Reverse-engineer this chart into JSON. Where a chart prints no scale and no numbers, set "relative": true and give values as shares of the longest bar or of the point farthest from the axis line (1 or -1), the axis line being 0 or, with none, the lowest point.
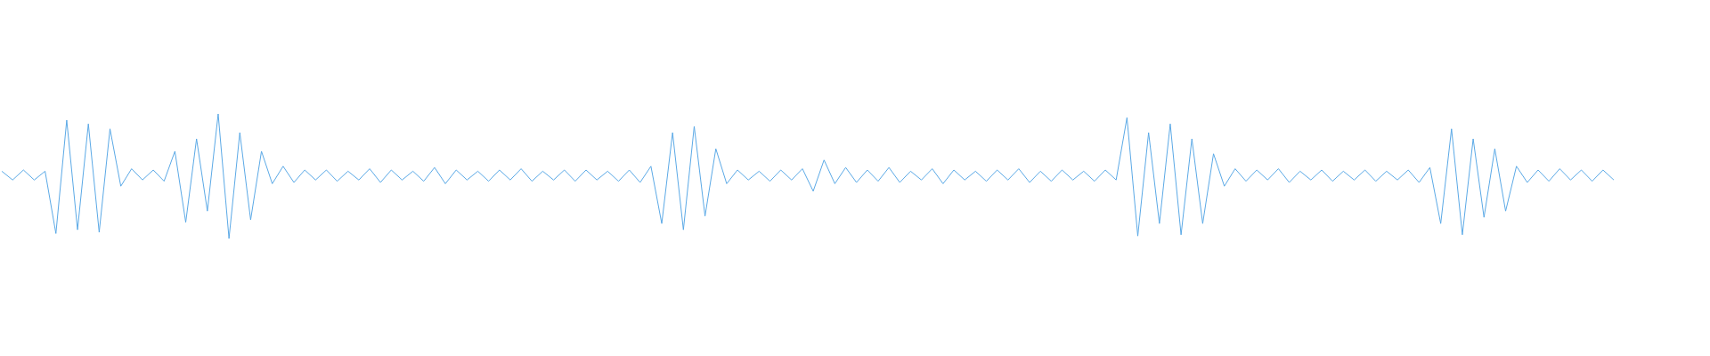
{
  "chart_data": {
    "type": "line",
    "relative": true,
    "color": "#5aa9e6",
    "marker": "none",
    "categories": [
      null,
      null,
      null,
      null,
      null,
      null,
      null,
      null,
      null,
      null,
      null,
      null,
      null,
      null,
      null,
      null,
      null,
      null,
      null,
      null,
      null,
      null,
      null,
      null,
      null,
      null,
      null,
      null,
      null,
      null,
      null,
      null,
      null,
      null,
      null,
      null,
      null,
      null,
      null,
      null,
      null,
      null,
      null,
      null,
      null,
      null,
      null,
      null,
      null,
      null,
      null,
      null,
      null,
      null,
      null,
      null,
      null,
      null,
      null,
      null,
      null,
      null,
      null,
      null,
      null,
      null,
      null,
      null,
      null,
      null,
      null,
      null,
      null,
      null,
      null,
      null,
      null,
      null,
      null,
      null,
      null,
      null,
      null,
      null,
      null,
      null,
      null,
      null,
      null,
      null,
      null,
      null,
      null,
      null,
      null,
      null,
      null,
      null,
      null,
      null,
      null,
      null,
      null,
      null,
      null,
      null,
      null,
      null,
      null,
      null,
      null,
      null,
      null,
      null,
      null,
      null,
      null,
      null,
      null,
      null,
      null,
      null,
      null,
      null,
      null,
      null,
      null,
      null,
      null,
      null,
      null,
      null,
      null,
      null,
      null,
      null,
      null,
      null,
      null,
      null,
      null,
      null,
      null,
      null,
      null,
      null,
      null,
      null,
      null,
      null
    ],
    "values": [
      0.54,
      0.47,
      0.55,
      0.47,
      0.54,
      0.04,
      0.95,
      0.07,
      0.92,
      0.05,
      0.88,
      0.42,
      0.56,
      0.47,
      0.55,
      0.46,
      0.7,
      0.13,
      0.8,
      0.22,
      1,
      0,
      0.85,
      0.15,
      0.7,
      0.44,
      0.58,
      0.45,
      0.55,
      0.47,
      0.55,
      0.46,
      0.54,
      0.47,
      0.56,
      0.45,
      0.55,
      0.47,
      0.54,
      0.46,
      0.57,
      0.44,
      0.55,
      0.47,
      0.54,
      0.46,
      0.55,
      0.47,
      0.56,
      0.46,
      0.54,
      0.47,
      0.55,
      0.46,
      0.55,
      0.47,
      0.54,
      0.46,
      0.55,
      0.45,
      0.58,
      0.12,
      0.85,
      0.07,
      0.9,
      0.18,
      0.72,
      0.44,
      0.55,
      0.47,
      0.54,
      0.46,
      0.55,
      0.47,
      0.56,
      0.38,
      0.63,
      0.44,
      0.57,
      0.45,
      0.55,
      0.46,
      0.57,
      0.45,
      0.54,
      0.47,
      0.56,
      0.44,
      0.55,
      0.47,
      0.54,
      0.46,
      0.55,
      0.47,
      0.56,
      0.45,
      0.54,
      0.46,
      0.55,
      0.47,
      0.54,
      0.46,
      0.55,
      0.47,
      0.97,
      0.02,
      0.85,
      0.12,
      0.92,
      0.03,
      0.8,
      0.12,
      0.68,
      0.42,
      0.56,
      0.46,
      0.55,
      0.47,
      0.56,
      0.45,
      0.54,
      0.47,
      0.55,
      0.46,
      0.54,
      0.47,
      0.55,
      0.46,
      0.54,
      0.47,
      0.55,
      0.45,
      0.57,
      0.12,
      0.88,
      0.03,
      0.8,
      0.17,
      0.72,
      0.22,
      0.58,
      0.45,
      0.55,
      0.46,
      0.56,
      0.47,
      0.55,
      0.46,
      0.55,
      0.47
    ]
  }
}
